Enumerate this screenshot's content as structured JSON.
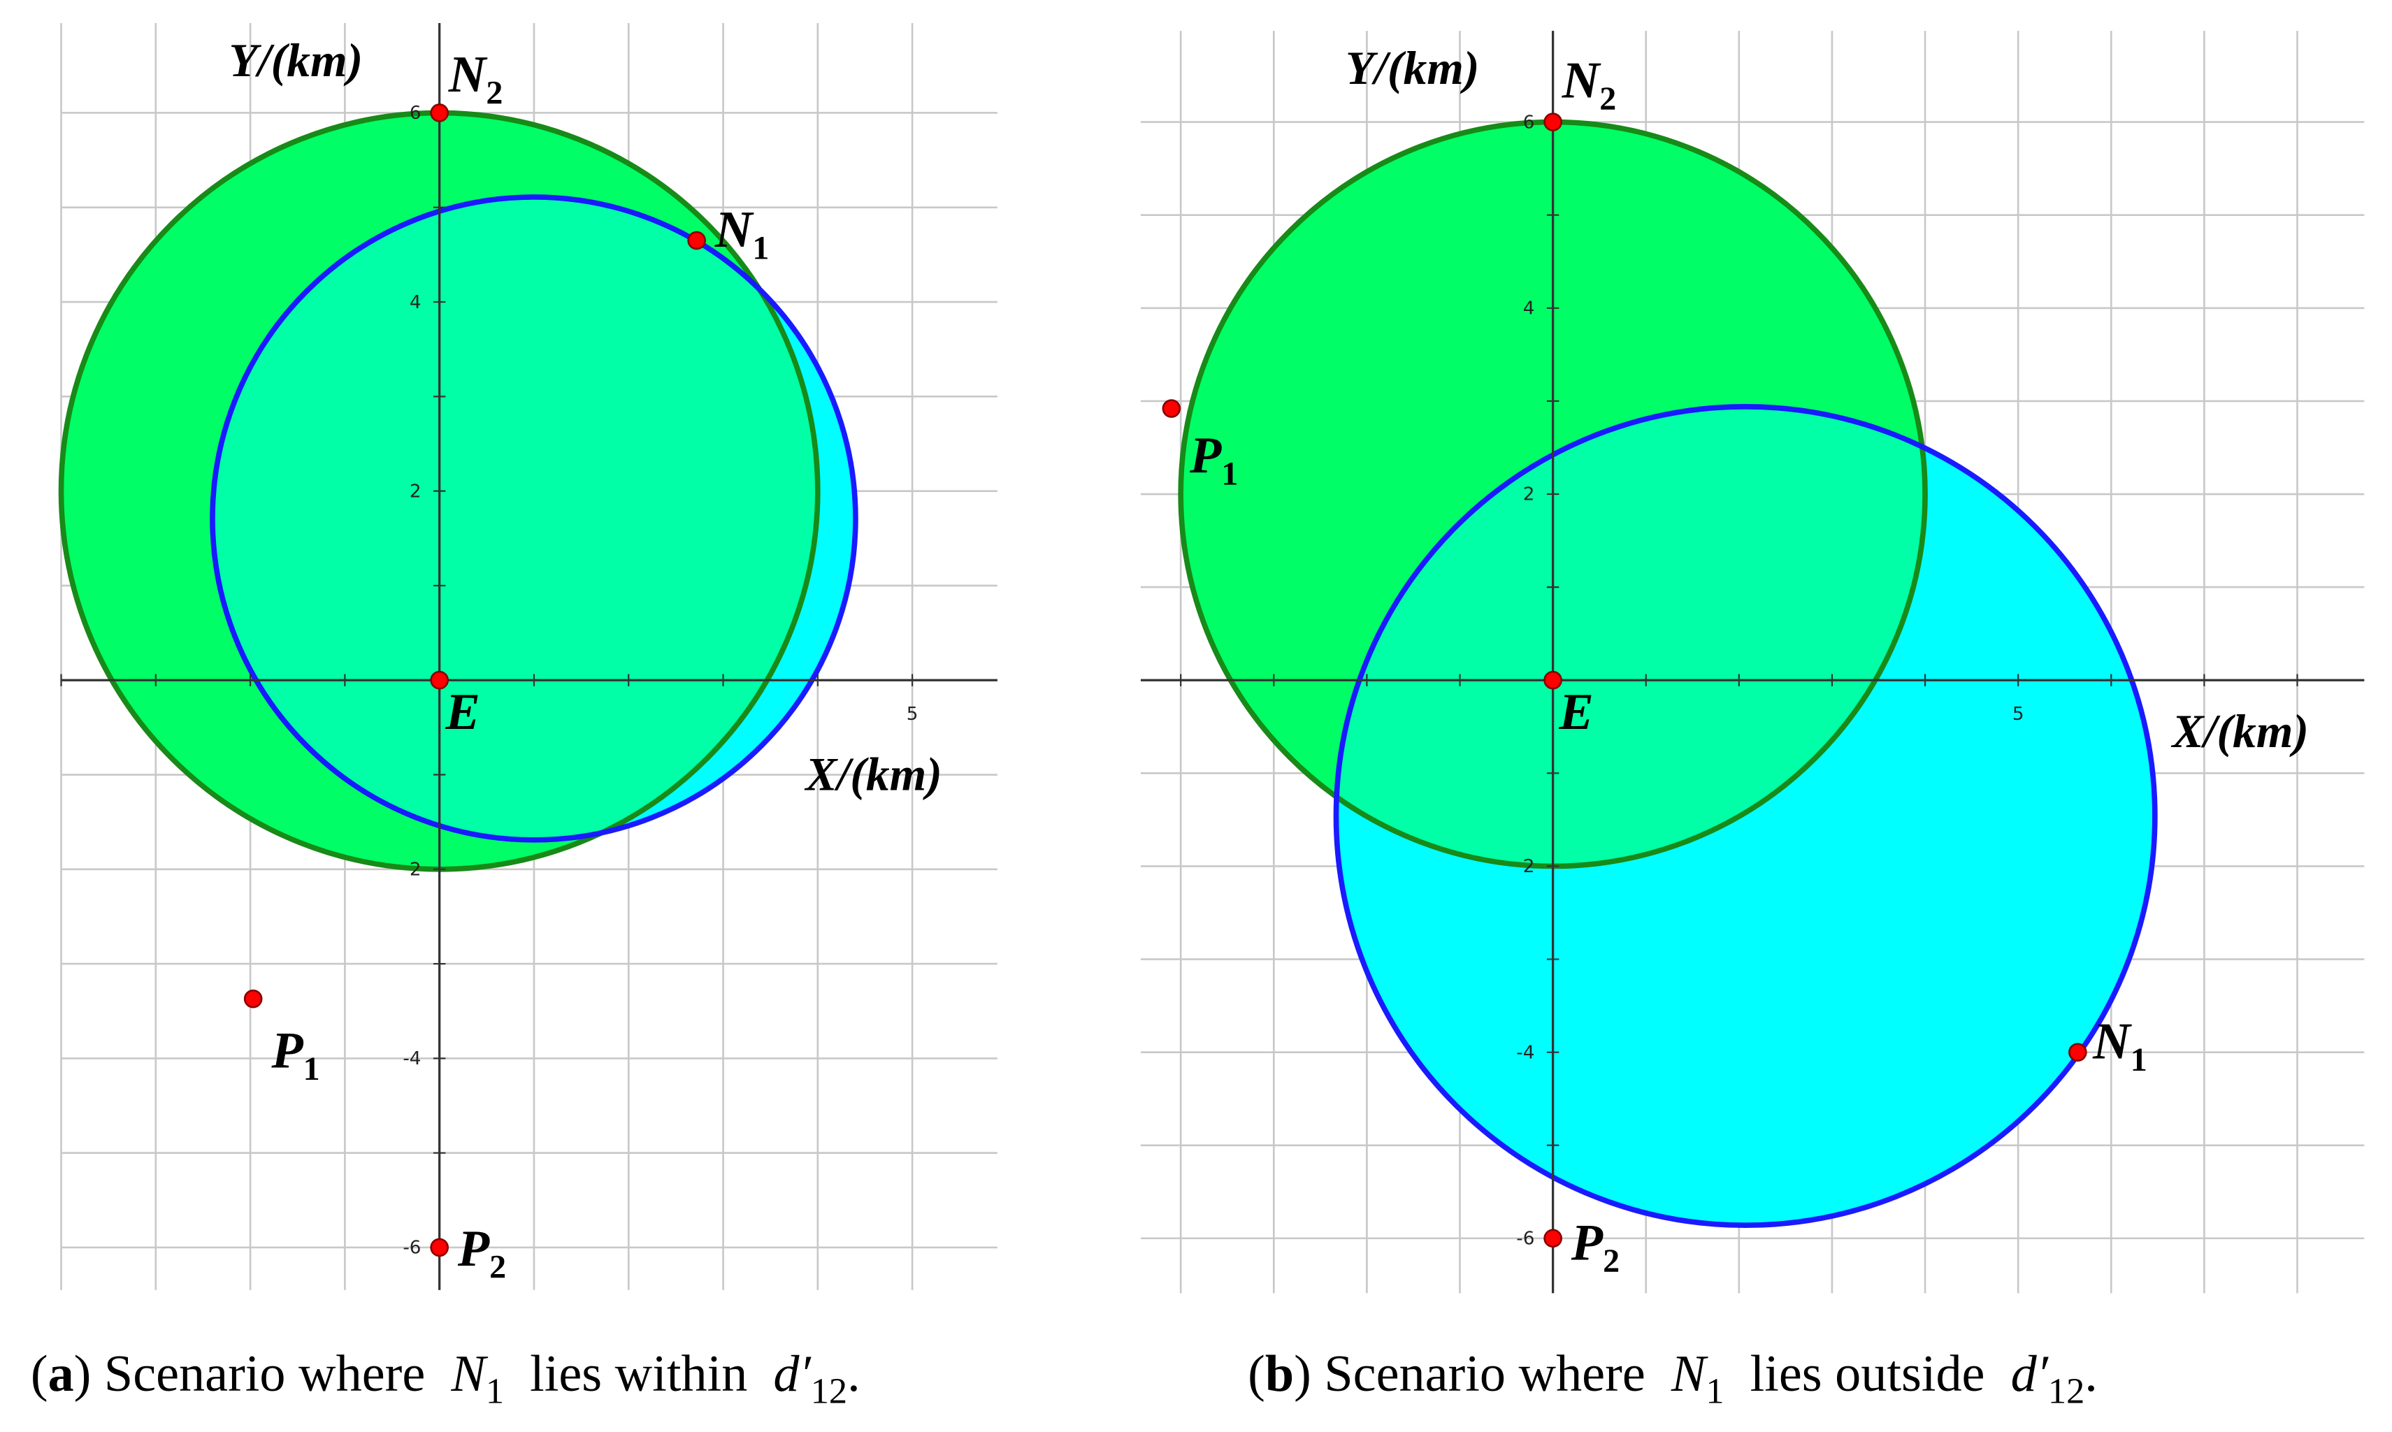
{
  "panels": [
    {
      "xlim": [
        -4,
        5.9
      ],
      "ylim": [
        -6.45,
        6.95
      ],
      "xgrid": [
        -4,
        -3,
        -2,
        -1,
        0,
        1,
        2,
        3,
        4,
        5
      ],
      "ygrid": [
        -6,
        -5,
        -4,
        -3,
        -2,
        -1,
        0,
        1,
        2,
        3,
        4,
        5,
        6
      ],
      "xticks": [
        5
      ],
      "yticks": [
        6,
        4,
        2,
        {
          "value": -2,
          "label": "2"
        },
        -4,
        -6
      ],
      "x_label": "X/(km)",
      "y_label": "Y/(km)",
      "circles": [
        {
          "cx": 0,
          "cy": 2,
          "r": 4,
          "fill": "#00ff66",
          "stroke": "#178a17"
        },
        {
          "cx": 1,
          "cy": 1.71,
          "r": 3.4,
          "fill": "#00ffff",
          "stroke": "#1a1aff"
        }
      ],
      "overlap_color": "#00ffa6",
      "points": [
        {
          "name": "N",
          "sub": "2",
          "x": 0,
          "y": 6
        },
        {
          "name": "N",
          "sub": "1",
          "x": 2.72,
          "y": 4.65
        },
        {
          "name": "E",
          "x": 0,
          "y": 0
        },
        {
          "name": "P",
          "sub": "1",
          "x": -1.97,
          "y": -3.37
        },
        {
          "name": "P",
          "sub": "2",
          "x": 0,
          "y": -6
        }
      ],
      "caption": [
        {
          "text": "(",
          "style": "normal"
        },
        {
          "text": "a",
          "style": "bold"
        },
        {
          "text": ") Scenario where  ",
          "style": "normal"
        },
        {
          "text": "N",
          "style": "italic"
        },
        {
          "text": "1",
          "style": "sub"
        },
        {
          "text": "  lies within  ",
          "style": "normal"
        },
        {
          "text": "d′",
          "style": "italic"
        },
        {
          "text": "12",
          "style": "sub"
        },
        {
          "text": ".",
          "style": "normal"
        }
      ]
    },
    {
      "xlim": [
        -4.43,
        8.72
      ],
      "ylim": [
        -6.59,
        6.98
      ],
      "xgrid": [
        -4,
        -3,
        -2,
        -1,
        0,
        1,
        2,
        3,
        4,
        5,
        6,
        7,
        8
      ],
      "ygrid": [
        -6,
        -5,
        -4,
        -3,
        -2,
        -1,
        0,
        1,
        2,
        3,
        4,
        5,
        6
      ],
      "xticks": [
        5
      ],
      "yticks": [
        6,
        4,
        2,
        {
          "value": -2,
          "label": "2"
        },
        -4,
        -6
      ],
      "x_label": "X/(km)",
      "y_label": "Y/(km)",
      "circles": [
        {
          "cx": 0,
          "cy": 2,
          "r": 4,
          "fill": "#00ff66",
          "stroke": "#178a17"
        },
        {
          "cx": 2.07,
          "cy": -1.46,
          "r": 4.4,
          "fill": "#00ffff",
          "stroke": "#1a1aff"
        }
      ],
      "overlap_color": "#00ffa6",
      "points": [
        {
          "name": "N",
          "sub": "2",
          "x": 0,
          "y": 6
        },
        {
          "name": "N",
          "sub": "1",
          "x": 5.64,
          "y": -4.0
        },
        {
          "name": "E",
          "x": 0,
          "y": 0
        },
        {
          "name": "P",
          "sub": "1",
          "x": -4.1,
          "y": 2.92
        },
        {
          "name": "P",
          "sub": "2",
          "x": 0,
          "y": -6
        }
      ],
      "caption": [
        {
          "text": "(",
          "style": "normal"
        },
        {
          "text": "b",
          "style": "bold"
        },
        {
          "text": ") Scenario where  ",
          "style": "normal"
        },
        {
          "text": "N",
          "style": "italic"
        },
        {
          "text": "1",
          "style": "sub"
        },
        {
          "text": "  lies outside  ",
          "style": "normal"
        },
        {
          "text": "d′",
          "style": "italic"
        },
        {
          "text": "12",
          "style": "sub"
        },
        {
          "text": ".",
          "style": "normal"
        }
      ]
    }
  ]
}
